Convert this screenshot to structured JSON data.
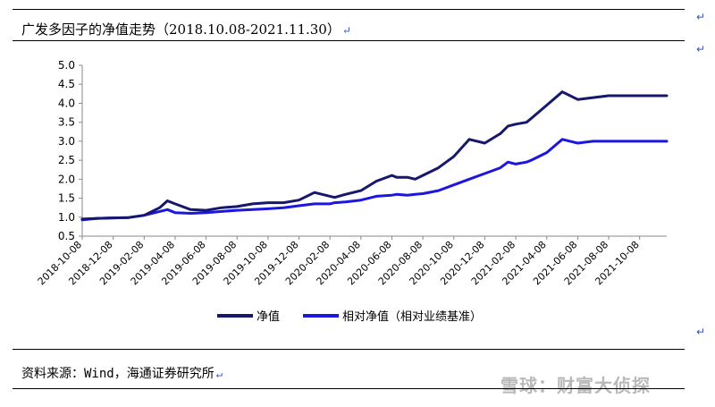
{
  "title": "广发多因子的净值走势（2018.10.08-2021.11.30）",
  "source": "资料来源：Wind，海通证券研究所",
  "watermark": "雪球：财富大侦探",
  "return_glyph": "↵",
  "colors": {
    "nav": "#17176e",
    "benchmark": "#1b17e0",
    "axis": "#888888"
  },
  "chart_data": {
    "type": "line",
    "title": "",
    "xlabel": "",
    "ylabel": "",
    "ylim": [
      0.5,
      5.0
    ],
    "yticks": [
      "0.5",
      "1.0",
      "1.5",
      "2.0",
      "2.5",
      "3.0",
      "3.5",
      "4.0",
      "4.5",
      "5.0"
    ],
    "grid": false,
    "legend_position": "bottom",
    "x_tick_labels": [
      "2018-10-08",
      "2018-12-08",
      "2019-02-08",
      "2019-04-08",
      "2019-06-08",
      "2019-08-08",
      "2019-10-08",
      "2019-12-08",
      "2020-02-08",
      "2020-04-08",
      "2020-06-08",
      "2020-08-08",
      "2020-10-08",
      "2020-12-08",
      "2021-02-08",
      "2021-04-08",
      "2021-06-08",
      "2021-08-08",
      "2021-10-08"
    ],
    "x_range": [
      0,
      37.75
    ],
    "x_unit": "months since 2018-10-08",
    "series": [
      {
        "name": "净值",
        "x": [
          0,
          1,
          2,
          3,
          4,
          5,
          5.5,
          6,
          7,
          8,
          9,
          10,
          11,
          12,
          13,
          14,
          15,
          16,
          16.3,
          17,
          18,
          19,
          20,
          20.3,
          21,
          21.5,
          22,
          23,
          24,
          25,
          26,
          27,
          27.5,
          28,
          28.7,
          29,
          30,
          31,
          32,
          33,
          34,
          34.3,
          35,
          35.5,
          36,
          37,
          37.75
        ],
        "values": [
          0.95,
          0.97,
          0.98,
          0.99,
          1.05,
          1.25,
          1.43,
          1.35,
          1.2,
          1.18,
          1.25,
          1.28,
          1.35,
          1.38,
          1.38,
          1.45,
          1.65,
          1.55,
          1.52,
          1.6,
          1.7,
          1.95,
          2.1,
          2.05,
          2.05,
          2.0,
          2.1,
          2.3,
          2.6,
          3.05,
          2.95,
          3.2,
          3.4,
          3.45,
          3.5,
          3.6,
          3.95,
          4.3,
          4.1,
          4.15,
          4.2,
          4.2,
          4.2,
          4.2,
          4.2,
          4.2,
          4.2
        ]
      },
      {
        "name": "相对净值（相对业绩基准）",
        "x": [
          0,
          1,
          2,
          3,
          4,
          5,
          5.5,
          6,
          7,
          8,
          9,
          10,
          11,
          12,
          13,
          14,
          15,
          16,
          16.3,
          17,
          18,
          19,
          20,
          20.3,
          21,
          21.5,
          22,
          23,
          24,
          25,
          26,
          27,
          27.5,
          28,
          28.7,
          29,
          30,
          31,
          32,
          33,
          34,
          34.3,
          35,
          35.5,
          36,
          37,
          37.75
        ],
        "values": [
          0.93,
          0.97,
          0.98,
          0.99,
          1.05,
          1.15,
          1.2,
          1.12,
          1.1,
          1.12,
          1.15,
          1.18,
          1.2,
          1.22,
          1.25,
          1.3,
          1.35,
          1.35,
          1.38,
          1.4,
          1.45,
          1.55,
          1.58,
          1.6,
          1.58,
          1.6,
          1.62,
          1.7,
          1.85,
          2.0,
          2.15,
          2.3,
          2.45,
          2.4,
          2.45,
          2.5,
          2.7,
          3.05,
          2.95,
          3.0,
          3.0,
          3.0,
          3.0,
          3.0,
          3.0,
          3.0,
          3.0
        ]
      }
    ]
  }
}
